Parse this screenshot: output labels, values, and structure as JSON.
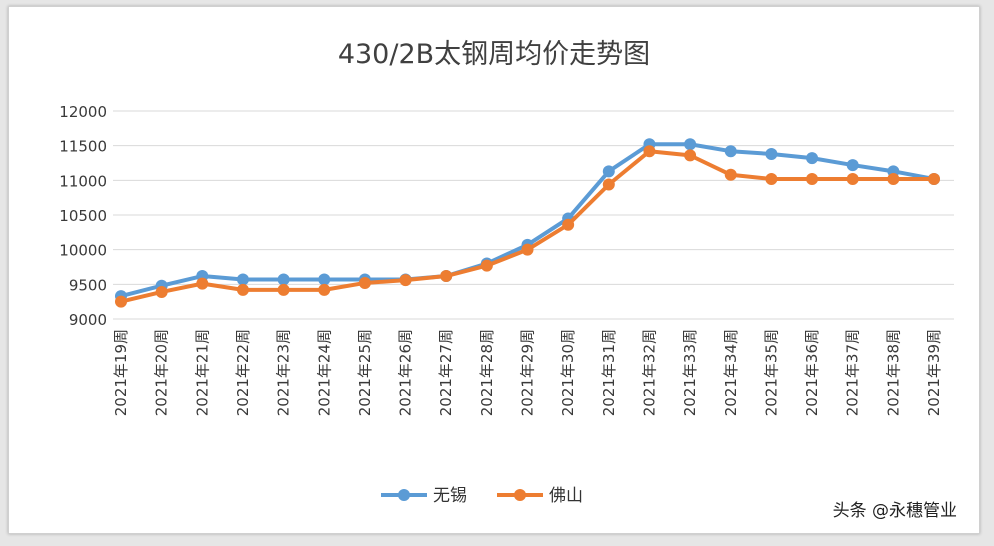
{
  "chart_data": {
    "type": "line",
    "title": "430/2B太钢周均价走势图",
    "xlabel": "",
    "ylabel": "",
    "categories": [
      "2021年19周",
      "2021年20周",
      "2021年21周",
      "2021年22周",
      "2021年23周",
      "2021年24周",
      "2021年25周",
      "2021年26周",
      "2021年27周",
      "2021年28周",
      "2021年29周",
      "2021年30周",
      "2021年31周",
      "2021年32周",
      "2021年33周",
      "2021年34周",
      "2021年35周",
      "2021年36周",
      "2021年37周",
      "2021年38周",
      "2021年39周"
    ],
    "series": [
      {
        "name": "无锡",
        "color": "#5b9bd5",
        "values": [
          9330,
          9480,
          9620,
          9570,
          9570,
          9570,
          9570,
          9570,
          9620,
          9800,
          10070,
          10450,
          11130,
          11520,
          11520,
          11420,
          11380,
          11320,
          11220,
          11130,
          11020
        ]
      },
      {
        "name": "佛山",
        "color": "#ed7d31",
        "values": [
          9250,
          9390,
          9510,
          9420,
          9420,
          9420,
          9520,
          9560,
          9620,
          9770,
          10000,
          10360,
          10940,
          11420,
          11360,
          11080,
          11020,
          11020,
          11020,
          11020,
          11020
        ]
      }
    ],
    "yticks": [
      9000,
      9500,
      10000,
      10500,
      11000,
      11500,
      12000
    ],
    "ylim": [
      9000,
      12000
    ],
    "grid": true,
    "legend_position": "bottom"
  },
  "credit": "头条 @永穗管业"
}
